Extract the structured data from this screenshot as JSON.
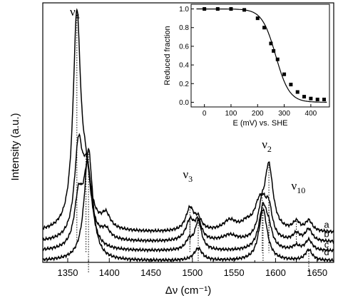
{
  "chart_data": [
    {
      "type": "line",
      "xlabel": "Δν (cm⁻¹)",
      "ylabel": "Intensity (a.u.)",
      "xlim": [
        1320,
        1670
      ],
      "xticks": [
        1350,
        1400,
        1450,
        1500,
        1550,
        1600,
        1650
      ],
      "peak_labels": [
        {
          "label": "ν4",
          "base": "ν",
          "sub": "4",
          "x": 1361
        },
        {
          "label": "ν3",
          "base": "ν",
          "sub": "3",
          "x": 1497
        },
        {
          "label": "ν2",
          "base": "ν",
          "sub": "2",
          "x": 1592
        },
        {
          "label": "ν10",
          "base": "ν",
          "sub": "10",
          "x": 1630
        }
      ],
      "series": [
        {
          "name": "a",
          "offset": 0.93,
          "peaks": [
            [
              1361,
              7.0,
              5.5
            ],
            [
              1372,
              1.4,
              7
            ],
            [
              1396,
              0.45,
              6
            ],
            [
              1497,
              0.75,
              6
            ],
            [
              1507,
              0.35,
              5
            ],
            [
              1545,
              0.35,
              10
            ],
            [
              1565,
              0.2,
              7
            ],
            [
              1580,
              0.7,
              7
            ],
            [
              1592,
              2.1,
              6
            ],
            [
              1625,
              0.3,
              5
            ],
            [
              1640,
              0.35,
              5
            ]
          ],
          "dotted_x": [
            1361,
            1497,
            1592,
            1625
          ]
        },
        {
          "name": "b",
          "offset": 0.62,
          "peaks": [
            [
              1363,
              3.0,
              6
            ],
            [
              1373,
              2.0,
              6
            ],
            [
              1396,
              0.3,
              6
            ],
            [
              1497,
              0.65,
              6
            ],
            [
              1507,
              0.6,
              5
            ],
            [
              1545,
              0.2,
              10
            ],
            [
              1584,
              1.3,
              6
            ],
            [
              1592,
              0.95,
              5
            ],
            [
              1625,
              0.25,
              5
            ],
            [
              1640,
              0.4,
              5
            ]
          ],
          "dotted_x": [
            1372,
            1497,
            1584,
            1592
          ]
        },
        {
          "name": "c",
          "offset": 0.32,
          "peaks": [
            [
              1363,
              1.6,
              6
            ],
            [
              1374,
              2.6,
              6
            ],
            [
              1496,
              0.3,
              5
            ],
            [
              1507,
              0.95,
              5
            ],
            [
              1585,
              1.4,
              6
            ],
            [
              1592,
              0.5,
              5
            ],
            [
              1625,
              0.15,
              5
            ],
            [
              1640,
              0.35,
              5
            ]
          ],
          "dotted_x": [
            1507,
            1585
          ]
        },
        {
          "name": "d",
          "offset": 0.0,
          "peaks": [
            [
              1375,
              3.7,
              6
            ],
            [
              1507,
              0.4,
              6
            ],
            [
              1585,
              1.7,
              6
            ],
            [
              1640,
              0.35,
              5
            ]
          ],
          "dotted_x": [
            1375,
            1640
          ]
        }
      ]
    },
    {
      "type": "scatter",
      "xlabel": "E (mV)  vs. SHE",
      "ylabel": "Reduced fraction",
      "xlim": [
        -50,
        470
      ],
      "ylim": [
        -0.05,
        1.05
      ],
      "xticks": [
        0,
        100,
        200,
        300,
        400
      ],
      "yticks": [
        0.0,
        0.2,
        0.4,
        0.6,
        0.8,
        1.0
      ],
      "ytick_labels": [
        "0.0",
        "0.2",
        "0.4",
        "0.6",
        "0.8",
        "1.0"
      ],
      "points": {
        "x": [
          0,
          50,
          100,
          150,
          200,
          225,
          250,
          260,
          275,
          300,
          325,
          350,
          375,
          400,
          425,
          450
        ],
        "y": [
          1.0,
          1.0,
          1.0,
          0.99,
          0.9,
          0.8,
          0.63,
          0.55,
          0.46,
          0.3,
          0.19,
          0.11,
          0.06,
          0.04,
          0.03,
          0.03
        ]
      },
      "fit": {
        "type": "nernst",
        "E0_mV": 268,
        "n": 1
      }
    }
  ],
  "curve_labels": [
    "a",
    "b",
    "c",
    "d"
  ]
}
